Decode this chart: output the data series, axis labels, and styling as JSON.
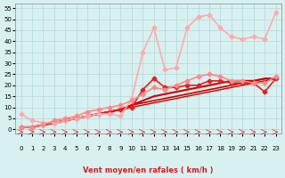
{
  "title": "",
  "xlabel": "Vent moyen/en rafales ( km/h )",
  "ylabel": "",
  "background_color": "#d8f0f0",
  "grid_color": "#b0d8d8",
  "x_ticks": [
    0,
    1,
    2,
    3,
    4,
    5,
    6,
    7,
    8,
    9,
    10,
    11,
    12,
    13,
    14,
    15,
    16,
    17,
    18,
    19,
    20,
    21,
    22,
    23
  ],
  "ylim": [
    -2,
    57
  ],
  "xlim": [
    -0.5,
    23.5
  ],
  "yticks": [
    0,
    5,
    10,
    15,
    20,
    25,
    30,
    35,
    40,
    45,
    50,
    55
  ],
  "series": [
    {
      "x": [
        0,
        1,
        2,
        3,
        4,
        5,
        6,
        7,
        8,
        9,
        10,
        11,
        12,
        13,
        14,
        15,
        16,
        17,
        18,
        19,
        20,
        21,
        22,
        23
      ],
      "y": [
        1,
        1,
        2,
        3,
        4,
        5,
        6,
        7,
        8,
        9,
        10,
        11,
        12,
        13,
        14,
        15,
        16,
        17,
        18,
        19,
        20,
        21,
        22,
        23
      ],
      "color": "#cc0000",
      "lw": 1.0,
      "marker": null
    },
    {
      "x": [
        0,
        1,
        2,
        3,
        4,
        5,
        6,
        7,
        8,
        9,
        10,
        11,
        12,
        13,
        14,
        15,
        16,
        17,
        18,
        19,
        20,
        21,
        22,
        23
      ],
      "y": [
        1,
        1,
        2,
        3,
        4,
        5,
        6,
        7,
        8,
        9,
        11,
        12,
        13,
        14,
        15,
        16,
        17,
        18,
        19,
        20,
        21,
        22,
        23,
        23
      ],
      "color": "#cc0000",
      "lw": 1.2,
      "marker": null
    },
    {
      "x": [
        0,
        1,
        2,
        3,
        4,
        5,
        6,
        7,
        8,
        9,
        10,
        11,
        12,
        13,
        14,
        15,
        16,
        17,
        18,
        19,
        20,
        21,
        22,
        23
      ],
      "y": [
        1,
        1,
        2,
        3,
        4,
        5,
        6,
        7,
        8,
        9,
        11,
        13,
        15,
        16,
        17,
        18,
        19,
        20,
        21,
        22,
        22,
        22,
        23,
        23
      ],
      "color": "#cc0000",
      "lw": 1.5,
      "marker": null
    },
    {
      "x": [
        0,
        1,
        2,
        3,
        4,
        5,
        6,
        7,
        8,
        9,
        10,
        11,
        12,
        13,
        14,
        15,
        16,
        17,
        18,
        19,
        20,
        21,
        22,
        23
      ],
      "y": [
        1,
        1,
        2,
        3,
        4,
        5,
        6,
        7,
        8,
        9,
        10,
        18,
        23,
        19,
        19,
        20,
        20,
        22,
        22,
        21,
        21,
        21,
        17,
        23
      ],
      "color": "#dd2222",
      "lw": 1.2,
      "marker": "D",
      "ms": 2.5
    },
    {
      "x": [
        0,
        1,
        2,
        3,
        4,
        5,
        6,
        7,
        8,
        9,
        10,
        11,
        12,
        13,
        14,
        15,
        16,
        17,
        18,
        19,
        20,
        21,
        22,
        23
      ],
      "y": [
        7,
        4,
        3,
        3,
        4,
        5,
        6,
        7,
        7,
        6,
        14,
        35,
        46,
        27,
        28,
        46,
        51,
        52,
        46,
        42,
        41,
        42,
        41,
        53
      ],
      "color": "#ffaaaa",
      "lw": 1.2,
      "marker": "D",
      "ms": 2.5
    },
    {
      "x": [
        0,
        1,
        2,
        3,
        4,
        5,
        6,
        7,
        8,
        9,
        10,
        11,
        12,
        13,
        14,
        15,
        16,
        17,
        18,
        19,
        20,
        21,
        22,
        23
      ],
      "y": [
        1,
        1,
        2,
        4,
        5,
        6,
        8,
        9,
        10,
        11,
        13,
        16,
        19,
        18,
        20,
        22,
        24,
        25,
        24,
        22,
        22,
        21,
        21,
        24
      ],
      "color": "#ff8888",
      "lw": 1.2,
      "marker": "D",
      "ms": 2.5
    }
  ],
  "wind_arrows": true,
  "arrow_color": "#cc2222"
}
